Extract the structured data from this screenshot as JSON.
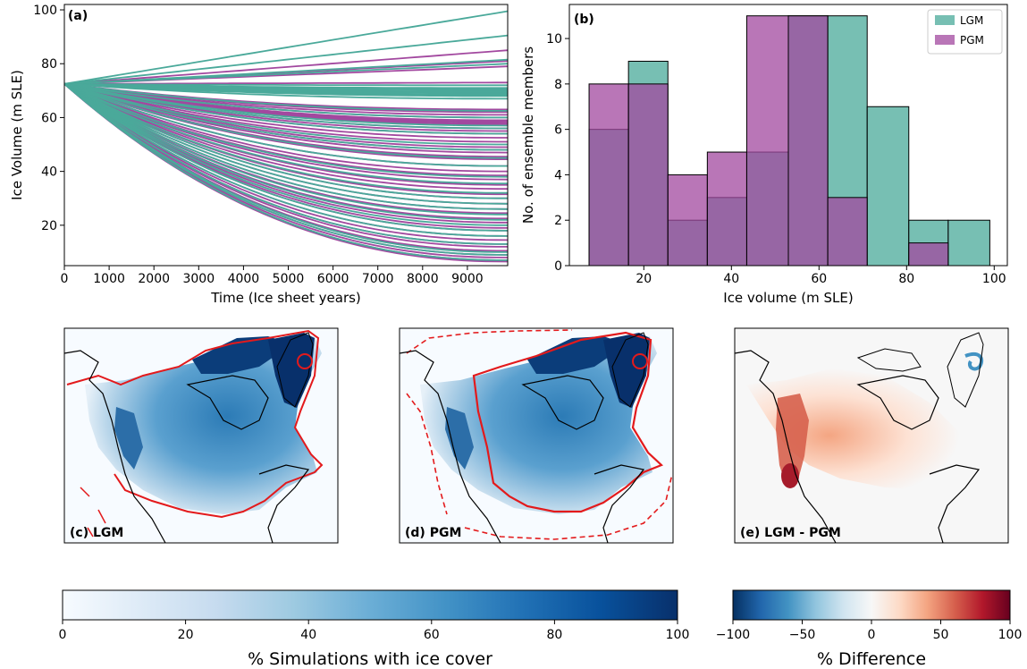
{
  "chart_data": [
    {
      "panel": "(a)",
      "type": "line",
      "xlabel": "Time (Ice sheet years)",
      "ylabel": "Ice Volume (m SLE)",
      "xlim": [
        0,
        9900
      ],
      "ylim": [
        5,
        102
      ],
      "xticks": [
        0,
        1000,
        2000,
        3000,
        4000,
        5000,
        6000,
        7000,
        8000,
        9000
      ],
      "yticks": [
        20,
        40,
        60,
        80,
        100
      ],
      "start_value": 72.5,
      "colors": {
        "LGM": "#4aa99a",
        "PGM": "#a2489f"
      },
      "series": [
        {
          "name": "LGM",
          "final_values": [
            99.5,
            90.5,
            81.5,
            80,
            72,
            71,
            70.5,
            70,
            69.5,
            69,
            68.5,
            68,
            67,
            62.5,
            60,
            57,
            56,
            54,
            50,
            48,
            45,
            42,
            38,
            35.5,
            32,
            30,
            28,
            26,
            24,
            22,
            20,
            18,
            16,
            13,
            10,
            9,
            7
          ]
        },
        {
          "name": "PGM",
          "final_values": [
            85,
            81,
            79,
            73,
            63,
            62,
            61,
            60,
            59,
            58.5,
            58,
            57.5,
            56,
            55,
            54,
            52.5,
            51,
            49,
            48,
            47,
            45.5,
            44.5,
            42,
            40,
            38.5,
            37,
            35,
            33.5,
            31.5,
            30,
            28,
            26,
            24.5,
            22.5,
            21,
            19,
            18,
            16,
            14.5,
            13,
            12,
            10.5,
            9,
            8,
            7,
            6.5
          ]
        }
      ]
    },
    {
      "panel": "(b)",
      "type": "bar",
      "xlabel": "Ice volume (m SLE)",
      "ylabel": "No. of ensemble members",
      "xlim": [
        3,
        103
      ],
      "ylim": [
        0,
        11.5
      ],
      "xticks": [
        20,
        40,
        60,
        80,
        100
      ],
      "yticks": [
        0,
        2,
        4,
        6,
        8,
        10
      ],
      "bin_edges": [
        7.5,
        16.5,
        25.5,
        34.5,
        43.5,
        53,
        62,
        71,
        80.5,
        89.5,
        99
      ],
      "series": [
        {
          "name": "LGM",
          "values": [
            6,
            9,
            2,
            3,
            5,
            11,
            11,
            7,
            2,
            2
          ]
        },
        {
          "name": "PGM",
          "values": [
            8,
            8,
            4,
            5,
            11,
            11,
            3,
            0,
            1,
            0
          ]
        }
      ],
      "legend": {
        "position": "top-right",
        "entries": [
          "LGM",
          "PGM"
        ]
      }
    },
    {
      "panel": "(c) LGM",
      "type": "heatmap",
      "label": "(c) LGM",
      "colorbar": "% Simulations with ice cover"
    },
    {
      "panel": "(d) PGM",
      "type": "heatmap",
      "label": "(d) PGM",
      "colorbar": "% Simulations with ice cover"
    },
    {
      "panel": "(e) LGM - PGM",
      "type": "heatmap",
      "label": "(e) LGM - PGM",
      "colorbar": "% Difference"
    },
    {
      "type": "colorbar",
      "label": "% Simulations with ice cover",
      "range": [
        0,
        100
      ],
      "ticks": [
        0,
        20,
        40,
        60,
        80,
        100
      ],
      "colormap": "Blues"
    },
    {
      "type": "colorbar",
      "label": "% Difference",
      "range": [
        -100,
        100
      ],
      "ticks": [
        -100,
        -50,
        0,
        50,
        100
      ],
      "tick_labels": [
        "−100",
        "−50",
        "0",
        "50",
        "100"
      ],
      "colormap": "RdBu_r"
    }
  ]
}
